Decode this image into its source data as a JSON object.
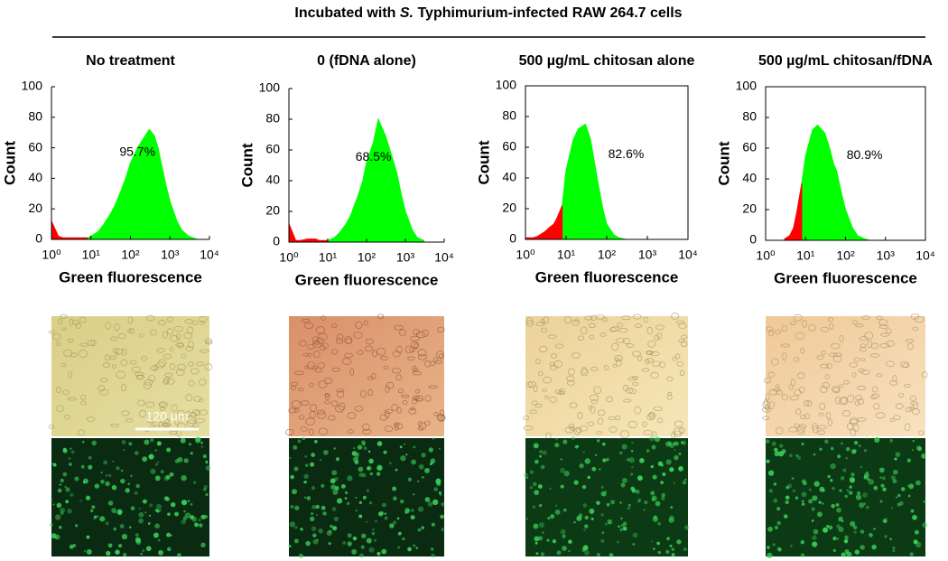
{
  "figure": {
    "title_start": "Incubated with",
    "title_italic": "S.",
    "title_end": "Typhimurium-infected RAW 264.7 cells"
  },
  "chart_data": [
    {
      "type": "area",
      "title": "No treatment",
      "xlabel": "Green fluorescence",
      "ylabel": "Count",
      "annotation": "95.7%",
      "log_x": true,
      "frame": false,
      "xlim": [
        1,
        10000
      ],
      "ylim": [
        0,
        100
      ],
      "xticks": [
        {
          "value": 1,
          "label": "10⁰"
        },
        {
          "value": 10,
          "label": "10¹"
        },
        {
          "value": 100,
          "label": "10²"
        },
        {
          "value": 1000,
          "label": "10³"
        },
        {
          "value": 10000,
          "label": "10⁴"
        }
      ],
      "yticks": [
        0,
        20,
        40,
        60,
        80,
        100
      ],
      "x": [
        1,
        1.5,
        2,
        3,
        4,
        5,
        6,
        8,
        10,
        15,
        20,
        30,
        40,
        50,
        60,
        80,
        100,
        150,
        200,
        300,
        400,
        500,
        600,
        800,
        1000,
        1500,
        2000,
        3000,
        5000,
        10000
      ],
      "series": [
        {
          "color": "#00ff00",
          "values": [
            null,
            null,
            null,
            null,
            null,
            null,
            null,
            1,
            2,
            5,
            9,
            16,
            22,
            28,
            33,
            42,
            50,
            60,
            65,
            72,
            68,
            60,
            50,
            35,
            25,
            12,
            6,
            2,
            0,
            null
          ]
        },
        {
          "color": "#ff0000",
          "values": [
            12,
            2,
            1,
            1,
            1,
            1,
            1,
            1,
            null,
            null,
            null,
            null,
            null,
            null,
            null,
            null,
            null,
            null,
            null,
            null,
            null,
            null,
            null,
            null,
            null,
            null,
            null,
            null,
            null,
            null
          ]
        }
      ]
    },
    {
      "type": "area",
      "title": "0 (fDNA alone)",
      "xlabel": "Green fluorescence",
      "ylabel": "Count",
      "annotation": "68.5%",
      "log_x": true,
      "frame": false,
      "xlim": [
        1,
        10000
      ],
      "ylim": [
        0,
        100
      ],
      "xticks": [
        {
          "value": 1,
          "label": "10⁰"
        },
        {
          "value": 10,
          "label": "10¹"
        },
        {
          "value": 100,
          "label": "10²"
        },
        {
          "value": 1000,
          "label": "10³"
        },
        {
          "value": 10000,
          "label": "10⁴"
        }
      ],
      "yticks": [
        0,
        20,
        40,
        60,
        80,
        100
      ],
      "x": [
        1,
        1.5,
        2,
        3,
        4,
        5,
        6,
        8,
        10,
        15,
        20,
        30,
        40,
        50,
        60,
        80,
        100,
        150,
        200,
        300,
        400,
        500,
        600,
        800,
        1000,
        1500,
        2000,
        3000,
        5000,
        10000
      ],
      "series": [
        {
          "color": "#00ff00",
          "values": [
            null,
            null,
            null,
            null,
            null,
            null,
            null,
            null,
            1,
            3,
            6,
            12,
            18,
            25,
            30,
            40,
            52,
            65,
            80,
            70,
            60,
            52,
            45,
            30,
            20,
            8,
            3,
            1,
            null,
            null
          ]
        },
        {
          "color": "#ff0000",
          "values": [
            12,
            1,
            1,
            2,
            2,
            2,
            1,
            1,
            1,
            null,
            null,
            null,
            null,
            null,
            null,
            null,
            null,
            null,
            null,
            null,
            null,
            null,
            null,
            null,
            null,
            null,
            null,
            null,
            null,
            null
          ]
        }
      ]
    },
    {
      "type": "area",
      "title": "500 µg/mL chitosan alone",
      "xlabel": "Green fluorescence",
      "ylabel": "Count",
      "annotation": "82.6%",
      "log_x": true,
      "frame": true,
      "xlim": [
        1,
        10000
      ],
      "ylim": [
        0,
        100
      ],
      "xticks": [
        {
          "value": 1,
          "label": "10⁰"
        },
        {
          "value": 10,
          "label": "10¹"
        },
        {
          "value": 100,
          "label": "10²"
        },
        {
          "value": 1000,
          "label": "10³"
        },
        {
          "value": 10000,
          "label": "10⁴"
        }
      ],
      "yticks": [
        0,
        20,
        40,
        60,
        80,
        100
      ],
      "x": [
        1,
        1.5,
        2,
        3,
        4,
        5,
        6,
        8,
        10,
        15,
        20,
        30,
        40,
        50,
        60,
        80,
        100,
        150,
        200,
        300,
        400,
        500,
        600,
        800,
        1000,
        1500,
        2000,
        3000,
        5000,
        10000
      ],
      "series": [
        {
          "color": "#00ff00",
          "values": [
            null,
            null,
            null,
            null,
            null,
            null,
            null,
            22,
            45,
            65,
            72,
            75,
            65,
            50,
            38,
            20,
            10,
            3,
            1,
            0,
            null,
            null,
            null,
            null,
            null,
            null,
            null,
            null,
            null,
            null
          ]
        },
        {
          "color": "#ff0000",
          "values": [
            1,
            1,
            2,
            5,
            8,
            10,
            14,
            22,
            null,
            null,
            null,
            null,
            null,
            null,
            null,
            null,
            null,
            null,
            null,
            null,
            null,
            null,
            null,
            null,
            null,
            null,
            null,
            null,
            null,
            null
          ]
        }
      ]
    },
    {
      "type": "area",
      "title": "500 µg/mL chitosan/fDNA",
      "xlabel": "Green fluorescence",
      "ylabel": "Count",
      "annotation": "80.9%",
      "log_x": true,
      "frame": true,
      "xlim": [
        1,
        10000
      ],
      "ylim": [
        0,
        100
      ],
      "xticks": [
        {
          "value": 1,
          "label": "10⁰"
        },
        {
          "value": 10,
          "label": "10¹"
        },
        {
          "value": 100,
          "label": "10²"
        },
        {
          "value": 1000,
          "label": "10³"
        },
        {
          "value": 10000,
          "label": "10⁴"
        }
      ],
      "yticks": [
        0,
        20,
        40,
        60,
        80,
        100
      ],
      "x": [
        1,
        1.5,
        2,
        3,
        4,
        5,
        6,
        8,
        10,
        15,
        20,
        30,
        40,
        50,
        60,
        80,
        100,
        150,
        200,
        300,
        400,
        500,
        600,
        800,
        1000,
        1500,
        2000,
        3000,
        5000,
        10000
      ],
      "series": [
        {
          "color": "#00ff00",
          "values": [
            null,
            null,
            null,
            null,
            null,
            null,
            null,
            37,
            55,
            72,
            75,
            70,
            60,
            50,
            45,
            30,
            20,
            8,
            3,
            1,
            0,
            null,
            null,
            null,
            null,
            null,
            null,
            null,
            null,
            null
          ]
        },
        {
          "color": "#ff0000",
          "values": [
            null,
            null,
            null,
            1,
            3,
            8,
            18,
            37,
            null,
            null,
            null,
            null,
            null,
            null,
            null,
            null,
            null,
            null,
            null,
            null,
            null,
            null,
            null,
            null,
            null,
            null,
            null,
            null,
            null,
            null
          ]
        }
      ]
    }
  ],
  "micrographs": {
    "scale_bar": "120 μm"
  }
}
